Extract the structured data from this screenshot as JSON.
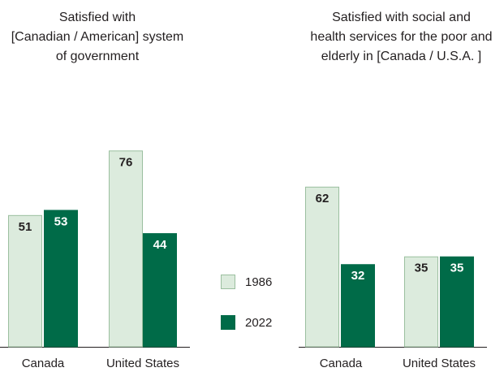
{
  "colors": {
    "y1986": "#dcebdd",
    "y1986_stroke": "#9bbf9f",
    "y2022": "#006b48",
    "axis": "#231f20",
    "text": "#231f20"
  },
  "legend": {
    "items": [
      "1986",
      "2022"
    ]
  },
  "chart_data": [
    {
      "type": "bar",
      "title_lines": [
        "Satisfied with",
        "[Canadian / American] system",
        "of government"
      ],
      "categories": [
        "Canada",
        "United States"
      ],
      "series": [
        {
          "name": "1986",
          "values": [
            51,
            76
          ]
        },
        {
          "name": "2022",
          "values": [
            53,
            44
          ]
        }
      ],
      "ylim": [
        0,
        100
      ],
      "grid": false,
      "legend_position": "right"
    },
    {
      "type": "bar",
      "title_lines": [
        "Satisfied with social and",
        "health services for the poor and",
        "elderly in [Canada / U.S.A. ]"
      ],
      "categories": [
        "Canada",
        "United States"
      ],
      "series": [
        {
          "name": "1986",
          "values": [
            62,
            35
          ]
        },
        {
          "name": "2022",
          "values": [
            32,
            35
          ]
        }
      ],
      "ylim": [
        0,
        100
      ],
      "grid": false,
      "legend_position": "left"
    }
  ]
}
